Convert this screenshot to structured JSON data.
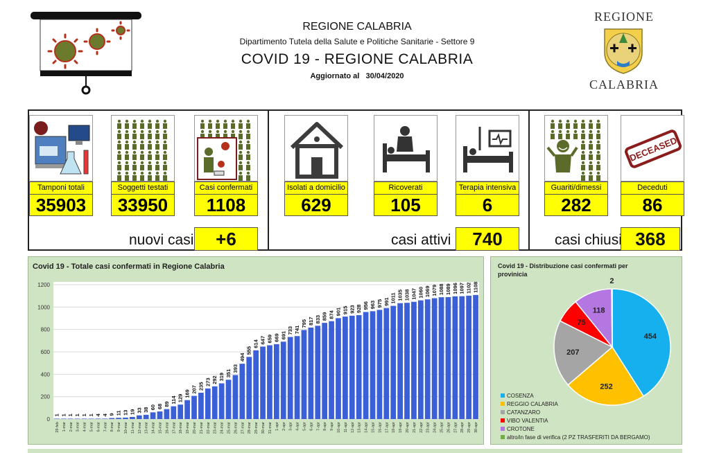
{
  "header": {
    "title": "REGIONE CALABRIA",
    "department": "Dipartimento Tutela della Salute e Politiche Sanitarie - Settore 9",
    "main_title": "COVID 19 - REGIONE CALABRIA",
    "updated_label": "Aggiornato al",
    "updated_date": "30/04/2020",
    "logo_top": "REGIONE",
    "logo_bottom": "CALABRIA"
  },
  "stats": [
    {
      "label": "Tamponi totali",
      "value": "35903",
      "icon": "lab-computer-icon"
    },
    {
      "label": "Soggetti testati",
      "value": "33950",
      "icon": "people-grid-icon"
    },
    {
      "label": "Casi confermati",
      "value": "1108",
      "icon": "virus-person-icon"
    },
    {
      "label": "Isolati a domicilio",
      "value": "629",
      "icon": "house-icon"
    },
    {
      "label": "Ricoverati",
      "value": "105",
      "icon": "hospital-bed-icon"
    },
    {
      "label": "Terapia intensiva",
      "value": "6",
      "icon": "icu-bed-icon"
    },
    {
      "label": "Guariti/dimessi",
      "value": "282",
      "icon": "recovered-person-icon"
    },
    {
      "label": "Deceduti",
      "value": "86",
      "icon": "deceased-stamp-icon"
    }
  ],
  "summary": {
    "new_label": "nuovi casi",
    "new_value": "+6",
    "active_label": "casi attivi",
    "active_value": "740",
    "closed_label": "casi chiusi",
    "closed_value": "368"
  },
  "colors": {
    "bar": "#3b5fd6",
    "panel_bg": "#cfe4c2",
    "highlight": "#ffff00"
  },
  "chart_data": [
    {
      "type": "bar",
      "title": "Covid 19 - Totale casi confermati in Regione Calabria",
      "ylim": [
        0,
        1200
      ],
      "yticks": [
        0,
        200,
        400,
        600,
        800,
        1000,
        1200
      ],
      "grid": true,
      "categories": [
        "29-feb",
        "1-mar",
        "2-mar",
        "3-mar",
        "4-mar",
        "5-mar",
        "6-mar",
        "7-mar",
        "8-mar",
        "9-mar",
        "10-mar",
        "11-mar",
        "12-mar",
        "13-mar",
        "14-mar",
        "15-mar",
        "16-mar",
        "17-mar",
        "18-mar",
        "19-mar",
        "20-mar",
        "21-mar",
        "22-mar",
        "23-mar",
        "24-mar",
        "25-mar",
        "26-mar",
        "27-mar",
        "28-mar",
        "29-mar",
        "30-mar",
        "31-mar",
        "1-apr",
        "2-apr",
        "3-apr",
        "4-apr",
        "5-apr",
        "6-apr",
        "7-apr",
        "8-apr",
        "9-apr",
        "10-apr",
        "11-apr",
        "12-apr",
        "13-apr",
        "14-apr",
        "15-apr",
        "16-apr",
        "17-apr",
        "18-apr",
        "19-apr",
        "20-apr",
        "21-apr",
        "22-apr",
        "23-apr",
        "24-apr",
        "25-apr",
        "26-apr",
        "27-apr",
        "28-apr",
        "29-apr",
        "30-apr"
      ],
      "values": [
        1,
        1,
        1,
        1,
        1,
        1,
        4,
        4,
        9,
        11,
        13,
        19,
        33,
        38,
        60,
        68,
        89,
        114,
        129,
        169,
        207,
        235,
        273,
        292,
        319,
        351,
        393,
        494,
        555,
        614,
        647,
        659,
        669,
        691,
        733,
        741,
        795,
        817,
        833,
        859,
        874,
        901,
        915,
        923,
        928,
        956,
        963,
        975,
        991,
        1011,
        1035,
        1038,
        1047,
        1060,
        1069,
        1079,
        1088,
        1089,
        1096,
        1097,
        1102,
        1108
      ]
    },
    {
      "type": "pie",
      "title": "Covid 19 - Distribuzione casi confermati per provinicia",
      "legend_position": "bottom-left",
      "slices": [
        {
          "name": "COSENZA",
          "value": 454,
          "color": "#17b0ef"
        },
        {
          "name": "REGGIO CALABRIA",
          "value": 252,
          "color": "#ffc000"
        },
        {
          "name": "CATANZARO",
          "value": 207,
          "color": "#a5a5a5"
        },
        {
          "name": "VIBO VALENTIA",
          "value": 75,
          "color": "#ff0000"
        },
        {
          "name": "CROTONE",
          "value": 118,
          "color": "#b476e0"
        },
        {
          "name": "altro/in fase di verifica (2 PZ TRASFERITI DA BERGAMO)",
          "value": 2,
          "color": "#70ad47"
        }
      ]
    }
  ]
}
